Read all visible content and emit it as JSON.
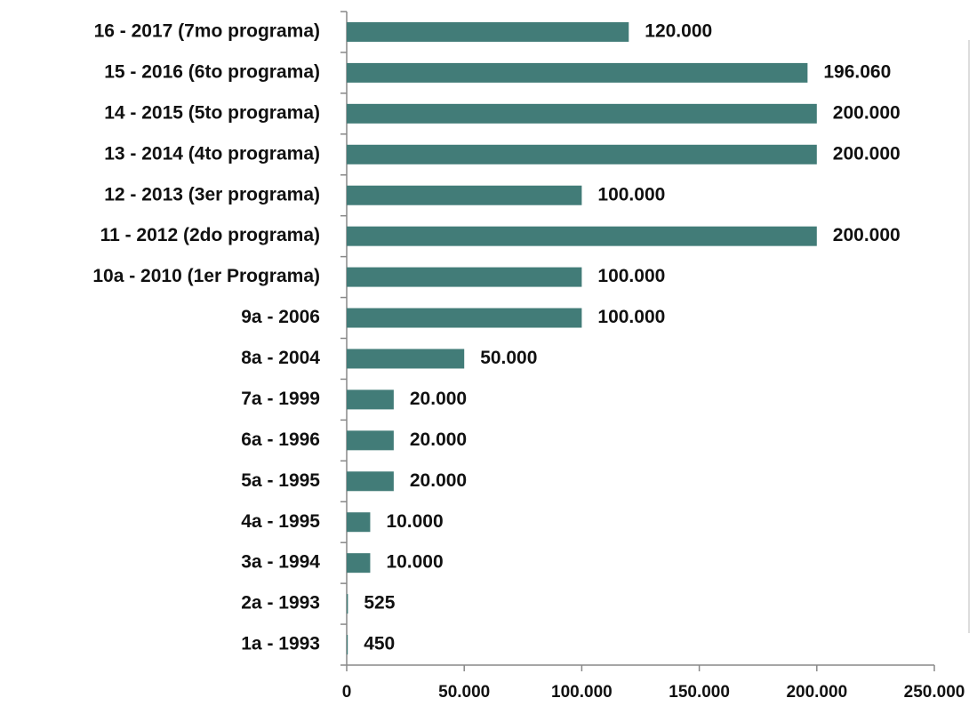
{
  "chart_data": {
    "type": "bar",
    "orientation": "horizontal",
    "color": "#427c78",
    "categories": [
      "16 - 2017 (7mo programa)",
      "15 - 2016 (6to programa)",
      "14 - 2015 (5to programa)",
      "13 - 2014 (4to programa)",
      "12 - 2013 (3er programa)",
      "11 - 2012 (2do programa)",
      "10a - 2010 (1er Programa)",
      "9a - 2006",
      "8a - 2004",
      "7a - 1999",
      "6a - 1996",
      "5a - 1995",
      "4a - 1995",
      "3a - 1994",
      "2a - 1993",
      "1a - 1993"
    ],
    "values": [
      120000,
      196060,
      200000,
      200000,
      100000,
      200000,
      100000,
      100000,
      50000,
      20000,
      20000,
      20000,
      10000,
      10000,
      525,
      450
    ],
    "value_labels": [
      "120.000",
      "196.060",
      "200.000",
      "200.000",
      "100.000",
      "200.000",
      "100.000",
      "100.000",
      "50.000",
      "20.000",
      "20.000",
      "20.000",
      "10.000",
      "10.000",
      "525",
      "450"
    ],
    "xlim": [
      0,
      250000
    ],
    "xticks": [
      0,
      {
        "value": 50000,
        "label": "50.000"
      },
      {
        "value": 100000,
        "label": "100.000"
      },
      {
        "value": 150000,
        "label": "150.000"
      },
      {
        "value": 200000,
        "label": "200.000"
      },
      {
        "value": 250000,
        "label": "250.000"
      }
    ]
  }
}
